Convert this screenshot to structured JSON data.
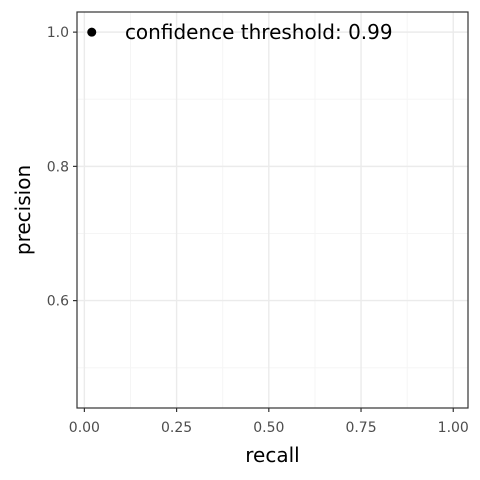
{
  "chart_data": {
    "type": "scatter",
    "xlabel": "recall",
    "ylabel": "precision",
    "xlim": [
      -0.02,
      1.04
    ],
    "ylim": [
      0.44,
      1.03
    ],
    "x_ticks": [
      0.0,
      0.25,
      0.5,
      0.75,
      1.0
    ],
    "x_tick_labels": [
      "0.00",
      "0.25",
      "0.50",
      "0.75",
      "1.00"
    ],
    "y_ticks": [
      0.6,
      0.8,
      1.0
    ],
    "y_tick_labels": [
      "0.6",
      "0.8",
      "1.0"
    ],
    "x_minor_ticks": [
      0.125,
      0.375,
      0.625,
      0.875
    ],
    "y_minor_ticks": [
      0.5,
      0.7,
      0.9
    ],
    "grid": true,
    "series": [
      {
        "points": [
          {
            "x": 0.02,
            "y": 1.0
          }
        ]
      }
    ],
    "annotations": [
      {
        "text": "confidence threshold: 0.99",
        "x": 0.11,
        "y": 1.0
      }
    ],
    "colors": {
      "point": "#000000",
      "grid_major": "#ebebeb",
      "grid_minor": "#f5f5f5",
      "panel_border": "#333333",
      "tick_text": "#4d4d4d"
    }
  }
}
